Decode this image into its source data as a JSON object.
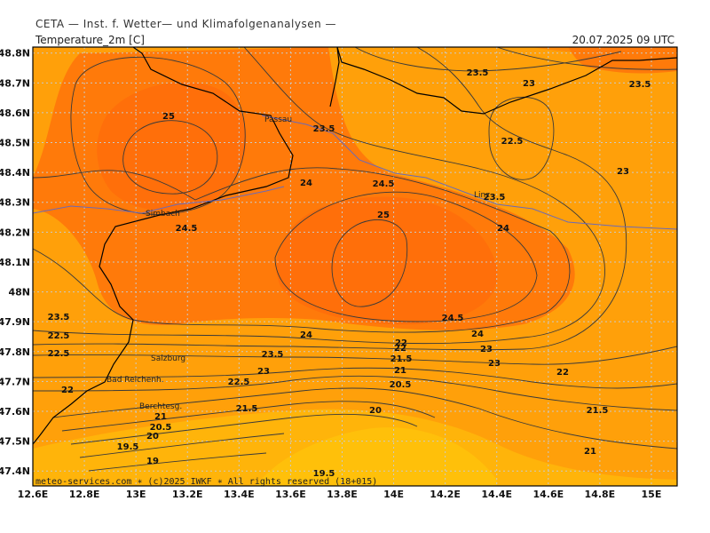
{
  "header": {
    "organization": "CETA — Inst. f. Wetter— und Klimafolgenanalysen —",
    "parameter": "Temperature_2m [C]",
    "valid_time": "20.07.2025 09 UTC"
  },
  "footer": {
    "copyright": "meteo-services.com ∗ (c)2025 IWKF ∗ All rights reserved (18+015)"
  },
  "map": {
    "lon_range": [
      12.6,
      15.1
    ],
    "lat_range": [
      47.35,
      48.82
    ],
    "lon_ticks": [
      "12.6E",
      "12.8E",
      "13E",
      "13.2E",
      "13.4E",
      "13.6E",
      "13.8E",
      "14E",
      "14.2E",
      "14.4E",
      "14.6E",
      "14.8E",
      "15E"
    ],
    "lat_ticks": [
      "48.8N",
      "48.7N",
      "48.6N",
      "48.5N",
      "48.4N",
      "48.3N",
      "48.2N",
      "48.1N",
      "48N",
      "47.9N",
      "47.8N",
      "47.7N",
      "47.6N",
      "47.5N",
      "47.4N"
    ],
    "colors": {
      "warm_core": "#FF6F0A",
      "warm": "#FF8A0A",
      "mid": "#FFA00A",
      "cool": "#FFB40A",
      "coolest": "#FFC00A",
      "grid": "#C9C9C9",
      "contour": "#3a3a3a",
      "border": "#000000",
      "river": "#6a6ab8"
    },
    "places": [
      "Passau",
      "Simbach",
      "Salzburg",
      "Bad Reichenh.",
      "Berchtesg.",
      "Linz"
    ],
    "contour_labels": [
      "25",
      "23.5",
      "23",
      "23.5",
      "23.5",
      "22.5",
      "23",
      "24",
      "24.5",
      "23.5",
      "25",
      "24.5",
      "24",
      "24",
      "23.5",
      "24.5",
      "24",
      "22.5",
      "22",
      "23.5",
      "23",
      "21.5",
      "23",
      "22.5",
      "23",
      "22.5",
      "22",
      "22",
      "21",
      "21.5",
      "20.5",
      "21",
      "22",
      "21.5",
      "20",
      "20.5",
      "20",
      "19.5",
      "19",
      "19.5",
      "21"
    ]
  }
}
